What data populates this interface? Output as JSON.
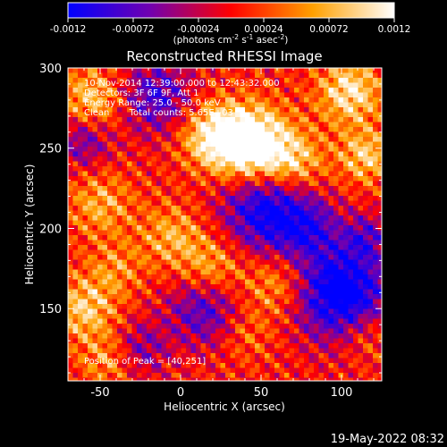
{
  "chart_data": {
    "type": "heatmap",
    "title": "Reconstructed RHESSI Image",
    "xlabel": "Heliocentric X (arcsec)",
    "ylabel": "Heliocentric Y (arcsec)",
    "xlim": [
      -70,
      125
    ],
    "ylim": [
      105,
      300
    ],
    "x_ticks": [
      -50,
      0,
      50,
      100
    ],
    "y_ticks": [
      150,
      200,
      250,
      300
    ],
    "colorbar": {
      "range": [
        -0.0012,
        0.0012
      ],
      "tick_labels": [
        "-0.0012",
        "-0.00072",
        "-0.00024",
        "0.00024",
        "0.00072",
        "0.0012"
      ],
      "ticks": [
        -0.0012,
        -0.00072,
        -0.00024,
        0.00024,
        0.00072,
        0.0012
      ],
      "label_main": "(photons cm",
      "label_exp1": "-2",
      "label_mid": " s",
      "label_exp2": "-1",
      "label_end": " asec",
      "label_exp3": "-2",
      "label_close": ")",
      "colors": [
        "#0000ff",
        "#7000b0",
        "#ff0000",
        "#ffa000",
        "#ffffff"
      ]
    },
    "annotations": [
      "10-Nov-2014 12:39:00.000 to 12:43:32.000",
      "Detectors: 3F 6F 9F, Att 1",
      "Energy Range: 25.0 - 50.0 keV",
      "Clean       Total counts: 5.65E+03"
    ],
    "peak_label": "Position of Peak = [40,251]",
    "peak_position": [
      40,
      251
    ]
  },
  "timestamp": "19-May-2022 08:32"
}
